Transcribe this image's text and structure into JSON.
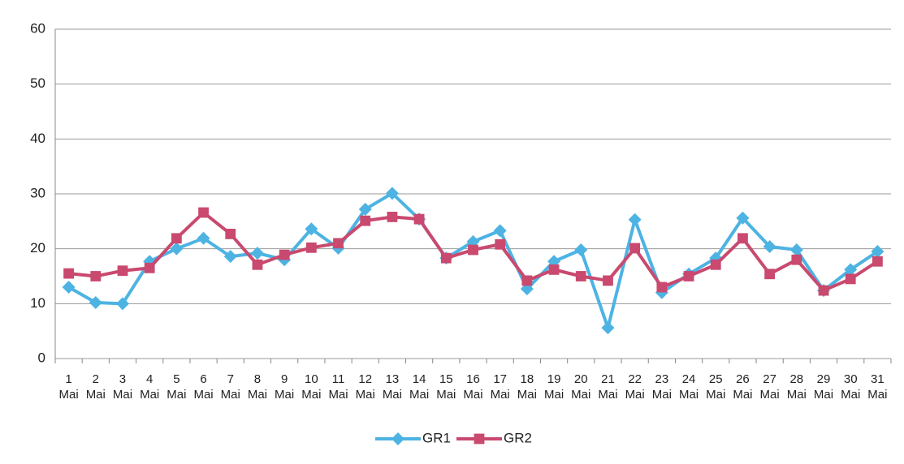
{
  "chart_data": {
    "type": "line",
    "categories": [
      "1 Mai",
      "2 Mai",
      "3 Mai",
      "4 Mai",
      "5 Mai",
      "6 Mai",
      "7 Mai",
      "8 Mai",
      "9 Mai",
      "10 Mai",
      "11 Mai",
      "12 Mai",
      "13 Mai",
      "14 Mai",
      "15 Mai",
      "16 Mai",
      "17 Mai",
      "18 Mai",
      "19 Mai",
      "20 Mai",
      "21 Mai",
      "22 Mai",
      "23 Mai",
      "24 Mai",
      "25 Mai",
      "26 Mai",
      "27 Mai",
      "28 Mai",
      "29 Mai",
      "30 Mai",
      "31 Mai"
    ],
    "series": [
      {
        "name": "GR1",
        "color": "#4db3e3",
        "marker": "diamond",
        "values": [
          13,
          10.2,
          10,
          17.7,
          20,
          21.9,
          18.6,
          19.2,
          18,
          23.6,
          20.1,
          27.2,
          30.1,
          25.4,
          18.3,
          21.3,
          23.3,
          12.7,
          17.7,
          19.8,
          5.6,
          25.3,
          12,
          15.4,
          18.3,
          25.6,
          20.4,
          19.8,
          12.4,
          16.2,
          19.5
        ]
      },
      {
        "name": "GR2",
        "color": "#c9496f",
        "marker": "square",
        "values": [
          15.5,
          15,
          16,
          16.5,
          21.9,
          26.6,
          22.7,
          17.1,
          18.9,
          20.2,
          21,
          25.1,
          25.8,
          25.4,
          18.3,
          19.8,
          20.8,
          14.2,
          16.2,
          15,
          14.2,
          20.1,
          13,
          15,
          17.1,
          21.9,
          15.4,
          18,
          12.4,
          14.5,
          17.7
        ]
      }
    ],
    "ylim": [
      0,
      60
    ],
    "yticks": [
      0,
      10,
      20,
      30,
      40,
      50,
      60
    ],
    "grid": true,
    "legend": "bottom"
  }
}
